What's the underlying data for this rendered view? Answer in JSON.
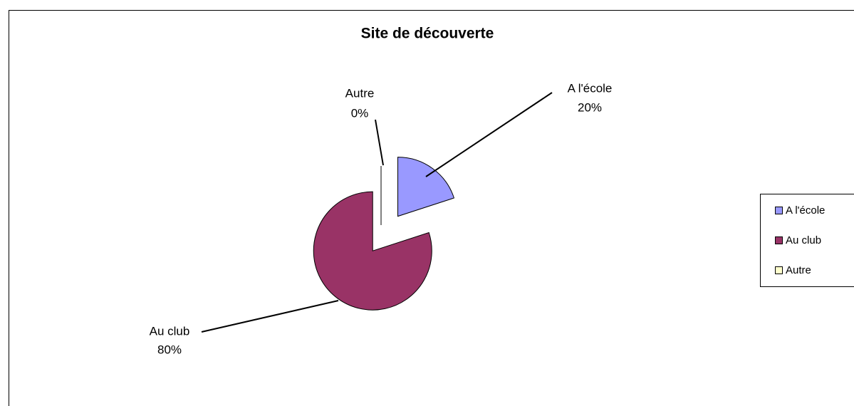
{
  "chart_data": {
    "type": "pie",
    "title": "Site de découverte",
    "categories": [
      "A l'école",
      "Au club",
      "Autre"
    ],
    "values": [
      20,
      80,
      0
    ],
    "value_labels": [
      "20%",
      "80%",
      "0%"
    ],
    "colors": [
      "#9999ff",
      "#993366",
      "#ffffcc"
    ],
    "legend": "right"
  }
}
